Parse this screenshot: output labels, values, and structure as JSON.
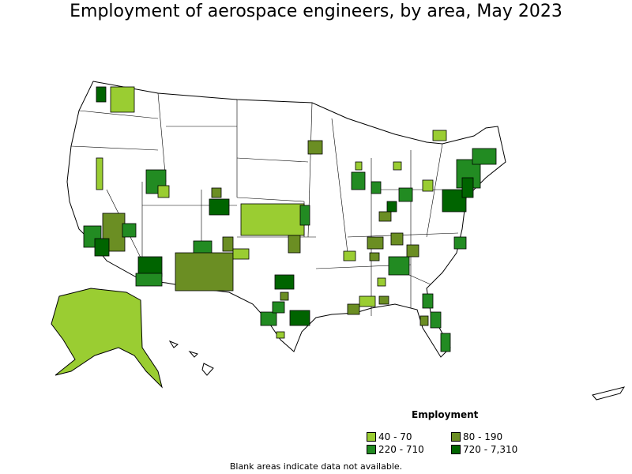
{
  "title": "Employment of aerospace engineers, by area, May 2023",
  "legend": {
    "title": "Employment",
    "items": [
      {
        "label": "40 - 70",
        "color": "#9acd32"
      },
      {
        "label": "80 - 190",
        "color": "#6b8e23"
      },
      {
        "label": "220 - 710",
        "color": "#228b22"
      },
      {
        "label": "720 - 7,310",
        "color": "#006400"
      }
    ]
  },
  "footnote": "Blank areas indicate data not available."
}
